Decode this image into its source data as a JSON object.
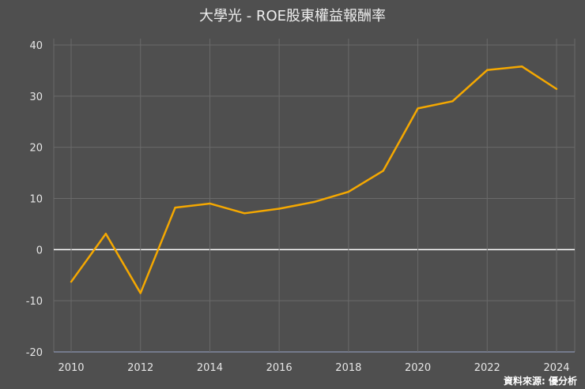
{
  "chart_data": {
    "type": "line",
    "title": "大學光 - ROE股東權益報酬率",
    "xlabel": "",
    "ylabel": "",
    "x": [
      2010,
      2011,
      2012,
      2013,
      2014,
      2015,
      2016,
      2017,
      2018,
      2019,
      2020,
      2021,
      2022,
      2023,
      2024
    ],
    "series": [
      {
        "name": "ROE",
        "color": "#f5a800",
        "values": [
          -6.3,
          3.1,
          -8.5,
          8.2,
          9.0,
          7.1,
          8.0,
          9.3,
          11.3,
          15.4,
          27.6,
          29.0,
          35.1,
          35.8,
          31.4
        ]
      }
    ],
    "xticks": [
      "2010",
      "2012",
      "2014",
      "2016",
      "2018",
      "2020",
      "2022",
      "2024"
    ],
    "yticks": [
      "40",
      "30",
      "20",
      "10",
      "0",
      "-10",
      "-20"
    ],
    "xlim": [
      2010,
      2024
    ],
    "ylim": [
      -20,
      40
    ],
    "grid": true,
    "legend": "none"
  },
  "source": "資料來源: 優分析"
}
